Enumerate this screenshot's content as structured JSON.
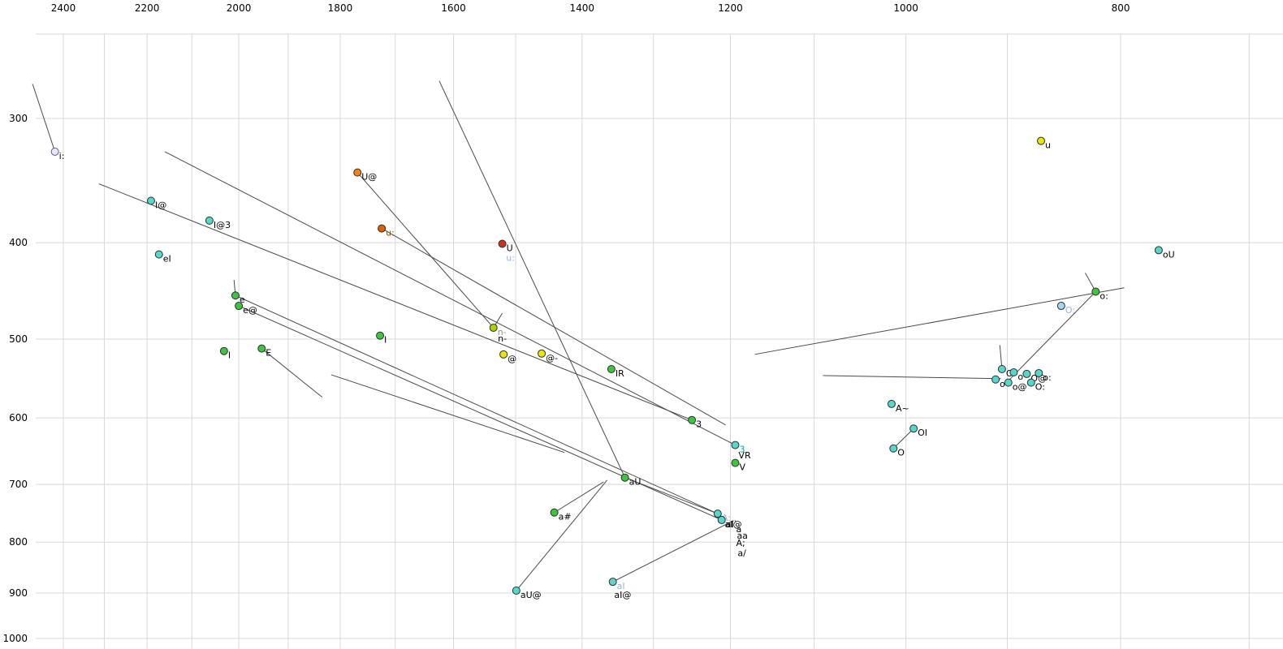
{
  "page": {
    "background": "#ffffff"
  },
  "chart_data": {
    "type": "scatter",
    "description": "Vowel formant plot (F2 horizontal reversed log scale, F1 vertical reversed log scale) with vowel category points and diphthong trajectory lines",
    "x_axis": {
      "ticks": [
        2400,
        2200,
        2000,
        1800,
        1600,
        1400,
        1200,
        1000,
        800
      ],
      "scale": "log",
      "direction": "reversed",
      "grid_min": 700,
      "grid_max": 2400,
      "grid_step": 100
    },
    "y_axis": {
      "ticks": [
        300,
        400,
        500,
        600,
        700,
        800,
        900,
        1000
      ],
      "scale": "log",
      "direction": "down",
      "grid_min": 300,
      "grid_max": 1000,
      "grid_step": 100
    },
    "legend": "none",
    "grid": true,
    "palette": {
      "grid": "#d8d8d8",
      "trajectory": "#4a4a4a",
      "tick": "#000000",
      "label": "#000000",
      "cyan": "#55d8cc",
      "green": "#3dc63d",
      "yellow": "#e8e800",
      "yellow_green": "#aad400",
      "orange": "#f5820a",
      "dark_orange": "#e05f00",
      "red": "#c93418",
      "lavender": "#e8e8f8",
      "light_blue": "#a5d8ee",
      "label_teal": "#00a8a8",
      "label_light_blue": "#98b6d8",
      "label_gray": "#909090",
      "label_brown": "#8a4a00",
      "point_stroke": "#2e2e2e",
      "i_stroke": "#5a5aa0"
    },
    "points": [
      {
        "label": "i:",
        "f2": 2421,
        "f1": 324,
        "fill": "lavender",
        "stroke": "i_stroke"
      },
      {
        "label": "I@",
        "f2": 2191,
        "f1": 363,
        "fill": "cyan"
      },
      {
        "label": "I@3",
        "f2": 2062,
        "f1": 380,
        "fill": "cyan"
      },
      {
        "label": "eI",
        "f2": 2173,
        "f1": 411,
        "fill": "cyan"
      },
      {
        "label": "U@",
        "f2": 1768,
        "f1": 340,
        "fill": "orange"
      },
      {
        "label": "u:",
        "f2": 1724,
        "f1": 387,
        "fill": "dark_orange",
        "label_color": "label_brown"
      },
      {
        "label": "U",
        "f2": 1521,
        "f1": 401,
        "fill": "red"
      },
      {
        "label": "u",
        "f2": 869,
        "f1": 316,
        "fill": "yellow"
      },
      {
        "label": "oU",
        "f2": 769,
        "f1": 407,
        "fill": "cyan"
      },
      {
        "label": "e",
        "f2": 2007,
        "f1": 452,
        "fill": "green"
      },
      {
        "label": "e@",
        "f2": 2000,
        "f1": 463,
        "fill": "green"
      },
      {
        "label": "I",
        "f2": 2031,
        "f1": 514,
        "fill": "green"
      },
      {
        "label": "E",
        "f2": 1953,
        "f1": 511,
        "fill": "green"
      },
      {
        "label": "I",
        "f2": 1727,
        "f1": 496,
        "fill": "green"
      },
      {
        "label": "n-",
        "f2": 1535,
        "f1": 487,
        "fill": "yellow_green",
        "label_color": "label_gray"
      },
      {
        "label": "@",
        "f2": 1519,
        "f1": 518,
        "fill": "yellow"
      },
      {
        "label": "@-",
        "f2": 1460,
        "f1": 517,
        "fill": "yellow"
      },
      {
        "label": "IR",
        "f2": 1358,
        "f1": 536,
        "fill": "green"
      },
      {
        "label": "3",
        "f2": 1249,
        "f1": 603,
        "fill": "green"
      },
      {
        "label": "3",
        "f2": 1194,
        "f1": 639,
        "fill": "cyan",
        "label_color": "label_teal"
      },
      {
        "label": "V",
        "f2": 1194,
        "f1": 666,
        "fill": "green"
      },
      {
        "label": "A~",
        "f2": 1015,
        "f1": 581,
        "fill": "cyan"
      },
      {
        "label": "OI",
        "f2": 992,
        "f1": 615,
        "fill": "cyan"
      },
      {
        "label": "O",
        "f2": 1013,
        "f1": 644,
        "fill": "cyan"
      },
      {
        "label": "O:",
        "f2": 851,
        "f1": 463,
        "fill": "light_blue",
        "label_color": "label_light_blue"
      },
      {
        "label": "o:",
        "f2": 821,
        "f1": 448,
        "fill": "green"
      },
      {
        "label": "O",
        "f2": 905,
        "f1": 536,
        "fill": "cyan"
      },
      {
        "label": "o",
        "f2": 894,
        "f1": 540,
        "fill": "cyan"
      },
      {
        "label": "O@",
        "f2": 882,
        "f1": 542,
        "fill": "cyan"
      },
      {
        "label": "o:",
        "f2": 871,
        "f1": 541,
        "fill": "cyan"
      },
      {
        "label": "o",
        "f2": 911,
        "f1": 549,
        "fill": "cyan"
      },
      {
        "label": "o@",
        "f2": 899,
        "f1": 553,
        "fill": "cyan"
      },
      {
        "label": "O:",
        "f2": 878,
        "f1": 553,
        "fill": "cyan"
      },
      {
        "label": "aU",
        "f2": 1339,
        "f1": 689,
        "fill": "green"
      },
      {
        "label": "a#",
        "f2": 1441,
        "f1": 747,
        "fill": "green"
      },
      {
        "label": "A:",
        "f2": 1216,
        "f1": 749,
        "fill": "cyan",
        "label_color": "label_light_blue"
      },
      {
        "label": "aI`",
        "f2": 1211,
        "f1": 760,
        "fill": "cyan"
      },
      {
        "label": "aU@",
        "f2": 1499,
        "f1": 895,
        "fill": "cyan"
      },
      {
        "label": "aI",
        "f2": 1356,
        "f1": 877,
        "fill": "cyan",
        "label_color": "label_light_blue"
      }
    ],
    "extra_labels": [
      {
        "text": "u:",
        "f2": 1515,
        "f1": 417,
        "color": "label_light_blue"
      },
      {
        "text": "n-",
        "f2": 1528,
        "f1": 503,
        "color": "label"
      },
      {
        "text": "VR",
        "f2": 1190,
        "f1": 659,
        "color": "label"
      },
      {
        "text": "aI@",
        "f2": 1207,
        "f1": 773,
        "color": "label"
      },
      {
        "text": "a",
        "f2": 1193,
        "f1": 782,
        "color": "label"
      },
      {
        "text": "aa",
        "f2": 1192,
        "f1": 794,
        "color": "label"
      },
      {
        "text": "A;",
        "f2": 1193,
        "f1": 807,
        "color": "label"
      },
      {
        "text": "a/",
        "f2": 1191,
        "f1": 826,
        "color": "label"
      },
      {
        "text": "aI@",
        "f2": 1354,
        "f1": 910,
        "color": "label"
      }
    ],
    "segments": [
      [
        2478,
        277,
        2421,
        324
      ],
      [
        2313,
        349,
        1249,
        603
      ],
      [
        2160,
        324,
        1194,
        639
      ],
      [
        1768,
        340,
        1535,
        487
      ],
      [
        1724,
        387,
        1206,
        610
      ],
      [
        1624,
        275,
        1339,
        689
      ],
      [
        2010,
        436,
        2007,
        452
      ],
      [
        1521,
        471,
        1535,
        487
      ],
      [
        1953,
        511,
        1834,
        572
      ],
      [
        1817,
        543,
        1426,
        650
      ],
      [
        1364,
        693,
        1499,
        895
      ],
      [
        1441,
        747,
        1369,
        696
      ],
      [
        1356,
        877,
        1196,
        761
      ],
      [
        2007,
        452,
        1216,
        749
      ],
      [
        2000,
        463,
        1211,
        760
      ],
      [
        1170,
        518,
        797,
        444
      ],
      [
        1090,
        544,
        906,
        548
      ],
      [
        907,
        507,
        905,
        536
      ],
      [
        830,
        429,
        821,
        448
      ],
      [
        821,
        448,
        900,
        552
      ],
      [
        1013,
        644,
        992,
        615
      ],
      [
        1339,
        689,
        1216,
        749
      ]
    ]
  }
}
